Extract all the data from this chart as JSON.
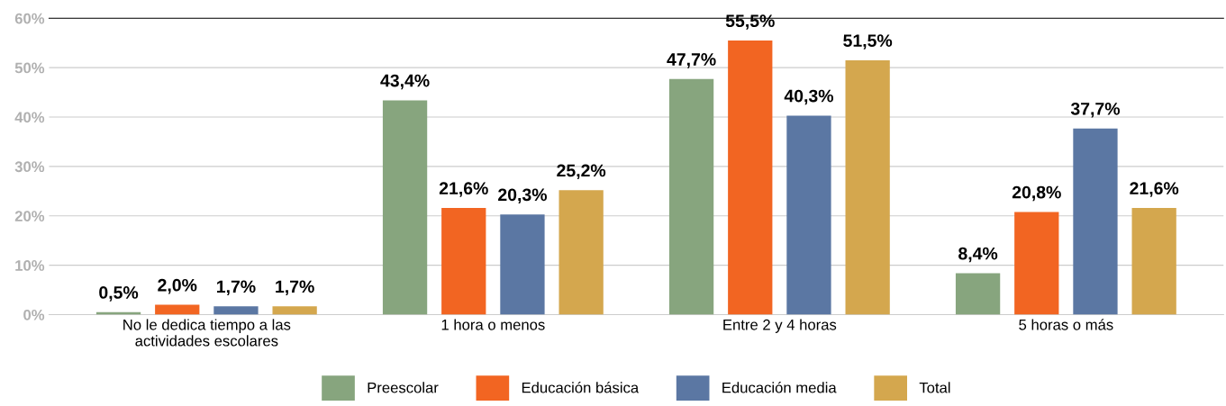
{
  "chart_data": {
    "type": "bar",
    "categories": [
      "No le dedica tiempo a las\nactividades escolares",
      "1 hora o menos",
      "Entre 2 y 4 horas",
      "5 horas o más"
    ],
    "series": [
      {
        "name": "Preescolar",
        "color": "#87a57e",
        "values": [
          0.5,
          43.4,
          47.7,
          8.4
        ],
        "value_labels": [
          "0,5%",
          "43,4%",
          "47,7%",
          "8,4%"
        ]
      },
      {
        "name": "Educación básica",
        "color": "#f26522",
        "values": [
          2.0,
          21.6,
          55.5,
          20.8
        ],
        "value_labels": [
          "2,0%",
          "21,6%",
          "55,5%",
          "20,8%"
        ]
      },
      {
        "name": "Educación media",
        "color": "#5b77a3",
        "values": [
          1.7,
          20.3,
          40.3,
          37.7
        ],
        "value_labels": [
          "1,7%",
          "20,3%",
          "40,3%",
          "37,7%"
        ]
      },
      {
        "name": "Total",
        "color": "#d4a74e",
        "values": [
          1.7,
          25.2,
          51.5,
          21.6
        ],
        "value_labels": [
          "1,7%",
          "25,2%",
          "51,5%",
          "21,6%"
        ]
      }
    ],
    "ylim": [
      0,
      60
    ],
    "yticks": [
      {
        "value": 0,
        "label": "0%"
      },
      {
        "value": 10,
        "label": "10%"
      },
      {
        "value": 20,
        "label": "20%"
      },
      {
        "value": 30,
        "label": "30%"
      },
      {
        "value": 40,
        "label": "40%"
      },
      {
        "value": 50,
        "label": "50%"
      },
      {
        "value": 60,
        "label": "60%"
      }
    ],
    "grid": "y",
    "legend": "bottom"
  }
}
